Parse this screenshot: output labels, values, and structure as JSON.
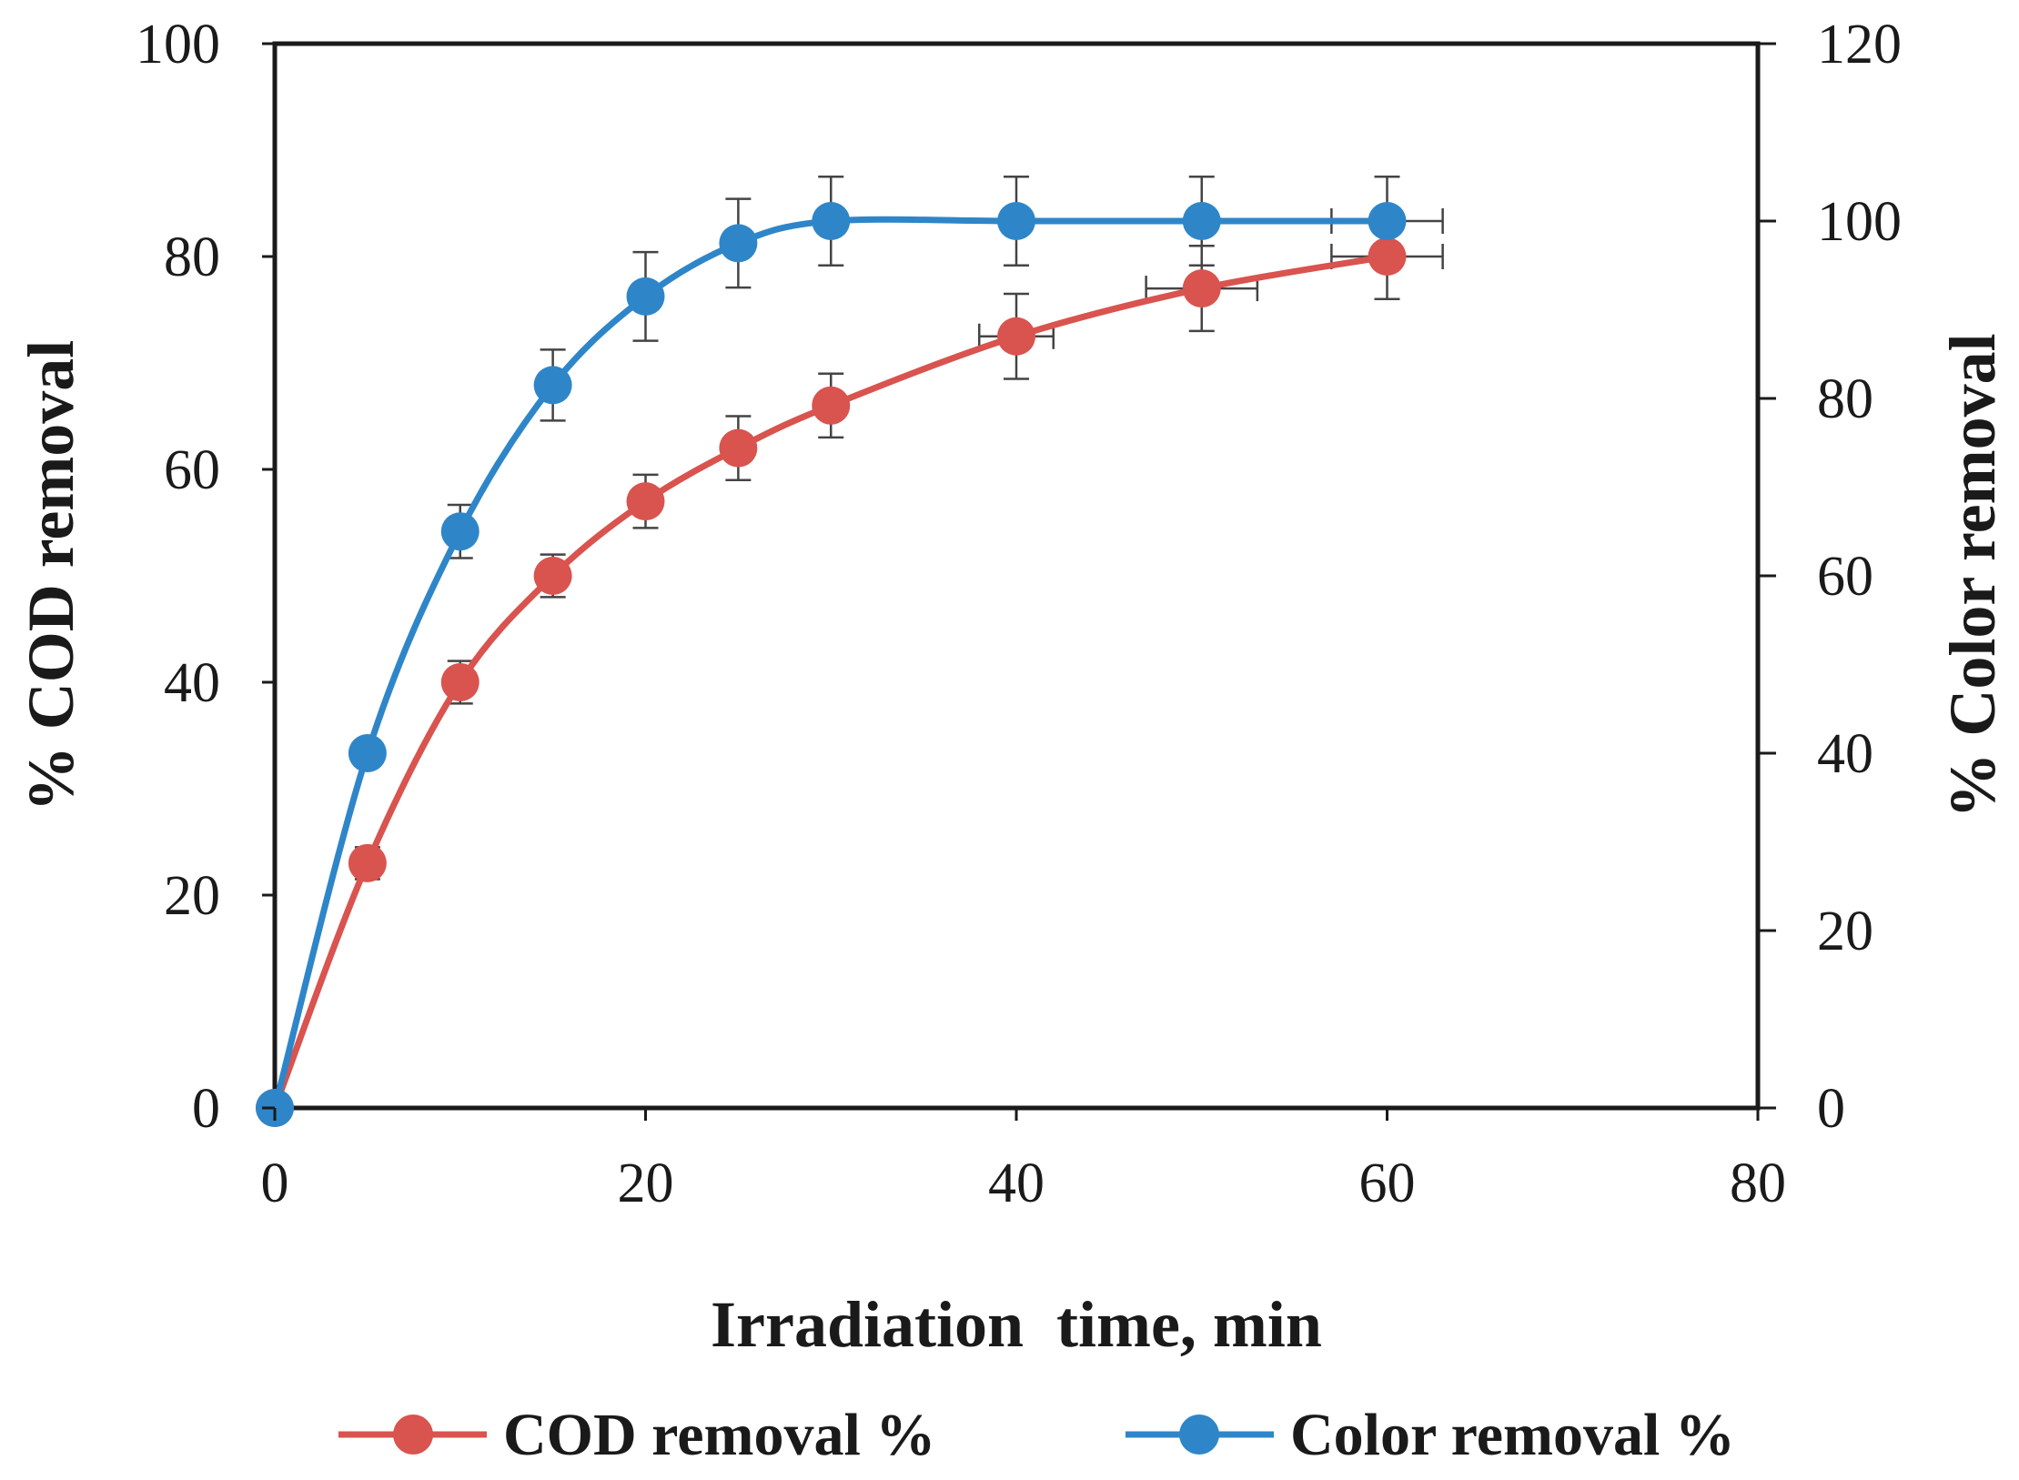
{
  "chart_data": {
    "type": "line",
    "title": "",
    "xlabel": "Irradiation  time, min",
    "ylabel": "% COD removal",
    "y2label": "% Color removal",
    "xlim": [
      0,
      80
    ],
    "ylim": [
      0,
      100
    ],
    "y2lim": [
      0,
      120
    ],
    "x_ticks": [
      "0",
      "20",
      "40",
      "60",
      "80"
    ],
    "y_ticks": [
      "0",
      "20",
      "40",
      "60",
      "80",
      "100"
    ],
    "y2_ticks": [
      "0",
      "20",
      "40",
      "60",
      "80",
      "100",
      "120"
    ],
    "grid": false,
    "legend_position": "bottom",
    "series": [
      {
        "name": "COD removal %",
        "axis": "left",
        "color": "#D9534F",
        "x": [
          0,
          5,
          10,
          15,
          20,
          25,
          30,
          40,
          50,
          60
        ],
        "y": [
          0,
          23,
          40,
          50,
          57,
          62,
          66,
          72.5,
          77,
          80
        ],
        "y_err": [
          0,
          1.5,
          2,
          2,
          2.5,
          3,
          3,
          4,
          4,
          4
        ],
        "x_err": [
          0,
          0,
          0,
          0,
          0,
          0,
          0,
          2,
          3,
          3
        ]
      },
      {
        "name": "Color removal %",
        "axis": "right",
        "color": "#2E86C9",
        "x": [
          0,
          5,
          10,
          15,
          20,
          25,
          30,
          40,
          50,
          60
        ],
        "y": [
          0,
          40,
          65,
          81.5,
          91.5,
          97.5,
          100,
          100,
          100,
          100
        ],
        "y_err": [
          0,
          0,
          3,
          4,
          5,
          5,
          5,
          5,
          5,
          5
        ],
        "x_err": [
          0,
          0,
          0,
          0,
          0,
          0,
          0,
          0,
          0,
          3
        ]
      }
    ]
  }
}
